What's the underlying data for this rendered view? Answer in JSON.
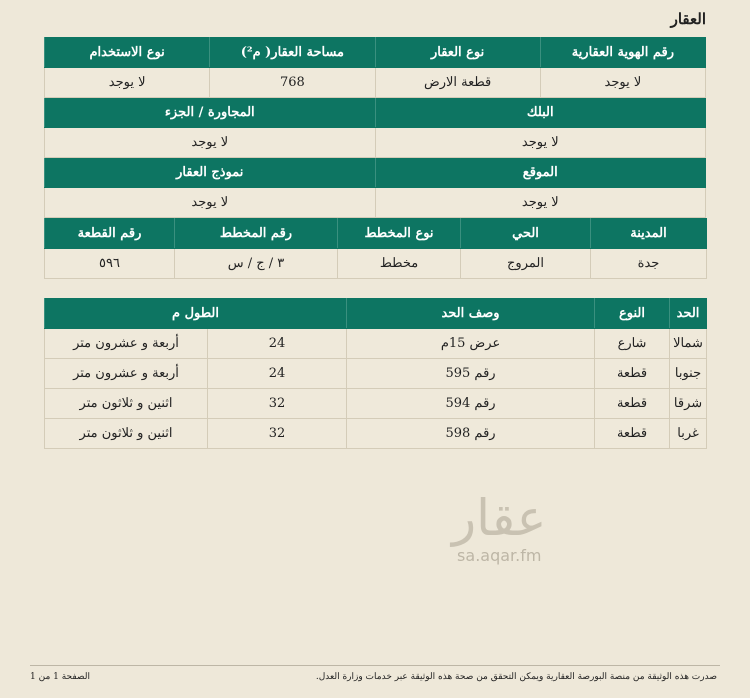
{
  "title": "العقار",
  "t1": {
    "h1": [
      "رقم الهوية العقارية",
      "نوع العقار",
      "مساحة العقار( م²)",
      "نوع الاستخدام"
    ],
    "v1": [
      "لا يوجد",
      "قطعة الارض",
      "768",
      "لا يوجد"
    ],
    "h2": [
      "البلك",
      "المجاورة / الجزء"
    ],
    "v2": [
      "لا يوجد",
      "لا يوجد"
    ],
    "h3": [
      "الموقع",
      "نموذج العقار"
    ],
    "v3": [
      "لا يوجد",
      "لا يوجد"
    ]
  },
  "t2": {
    "headers": [
      "المدينة",
      "الحي",
      "نوع المخطط",
      "رقم المخطط",
      "رقم القطعة"
    ],
    "values": [
      "جدة",
      "المروج",
      "مخطط",
      "٣ / ج / س",
      "٥٩٦"
    ]
  },
  "t3": {
    "headers": [
      "الحد",
      "النوع",
      "وصف الحد",
      "الطول م"
    ],
    "rows": [
      [
        "شمالا",
        "شارع",
        "عرض 15م",
        "24",
        "أربعة و عشرون متر"
      ],
      [
        "جنوبا",
        "قطعة",
        "رقم 595",
        "24",
        "أربعة و عشرون متر"
      ],
      [
        "شرقا",
        "قطعة",
        "رقم 594",
        "32",
        "اثنين و ثلاثون متر"
      ],
      [
        "غربا",
        "قطعة",
        "رقم 598",
        "32",
        "اثنين و ثلاثون متر"
      ]
    ]
  },
  "watermark": {
    "logo": "عقار",
    "url": "sa.aqar.fm"
  },
  "footer": {
    "note": "صدرت هذه الوثيقة من منصة البورصة العقارية ويمكن التحقق من صحة هذه الوثيقة عبر خدمات وزارة العدل.",
    "page": "الصفحة 1 من 1"
  },
  "colors": {
    "header": "#0d7562",
    "background": "#eee8d9"
  }
}
